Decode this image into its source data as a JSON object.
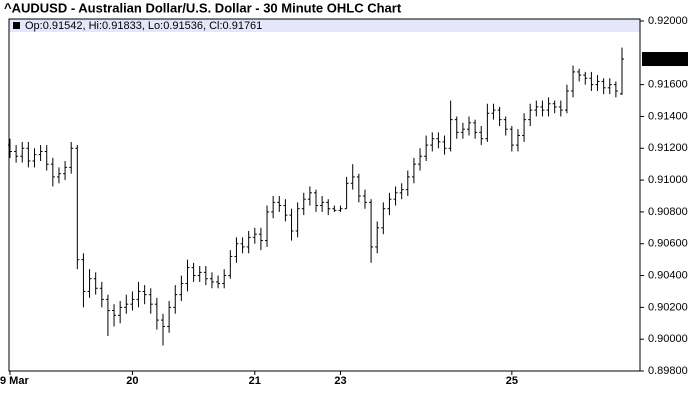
{
  "chart_data": {
    "type": "ohlc",
    "title": "^AUDUSD - Australian Dollar/U.S. Dollar - 30 Minute OHLC Chart",
    "info_label": "Op:0.91542, Hi:0.91833, Lo:0.91536, Cl:0.91761",
    "color": "#000000",
    "categories": [
      "9 Mar",
      null,
      null,
      null,
      null,
      null,
      null,
      null,
      null,
      null,
      null,
      null,
      null,
      null,
      null,
      null,
      null,
      null,
      null,
      null,
      "20",
      null,
      null,
      null,
      null,
      null,
      null,
      null,
      null,
      null,
      null,
      null,
      null,
      null,
      null,
      null,
      null,
      null,
      null,
      null,
      "21",
      null,
      null,
      null,
      null,
      null,
      null,
      null,
      null,
      null,
      null,
      null,
      null,
      null,
      "23",
      null,
      null,
      null,
      null,
      null,
      null,
      null,
      null,
      null,
      null,
      null,
      null,
      null,
      null,
      null,
      null,
      null,
      null,
      null,
      null,
      null,
      null,
      null,
      null,
      null,
      null,
      null,
      "25",
      null,
      null,
      null,
      null,
      null,
      null,
      null,
      null,
      null,
      null,
      null,
      null,
      null,
      null,
      null,
      null,
      null,
      null
    ],
    "open": [
      0.9122,
      0.9118,
      0.9115,
      0.912,
      0.9112,
      0.9116,
      0.9118,
      0.911,
      0.9102,
      0.9104,
      0.9108,
      0.912,
      0.905,
      0.903,
      0.9038,
      0.9032,
      0.9025,
      0.9018,
      0.9015,
      0.902,
      0.9022,
      0.9025,
      0.903,
      0.9028,
      0.9022,
      0.9012,
      0.9008,
      0.902,
      0.9028,
      0.9035,
      0.9045,
      0.904,
      0.9042,
      0.9038,
      0.9036,
      0.9035,
      0.904,
      0.9052,
      0.906,
      0.9058,
      0.9064,
      0.9066,
      0.9062,
      0.908,
      0.9086,
      0.9084,
      0.9078,
      0.9068,
      0.9082,
      0.9088,
      0.9092,
      0.9084,
      0.9086,
      0.9082,
      0.9081,
      0.9082,
      0.9098,
      0.9102,
      0.909,
      0.9086,
      0.9058,
      0.907,
      0.9082,
      0.9088,
      0.9092,
      0.9094,
      0.9102,
      0.911,
      0.9115,
      0.9122,
      0.9126,
      0.9124,
      0.912,
      0.9138,
      0.913,
      0.9132,
      0.9136,
      0.913,
      0.9126,
      0.9142,
      0.9144,
      0.9138,
      0.9132,
      0.9122,
      0.9128,
      0.9138,
      0.9144,
      0.9146,
      0.9144,
      0.9148,
      0.9146,
      0.9144,
      0.9156,
      0.9168,
      0.9166,
      0.9164,
      0.916,
      0.9162,
      0.9158,
      0.916,
      0.91542
    ],
    "high": [
      0.9126,
      0.9122,
      0.9124,
      0.9124,
      0.912,
      0.9122,
      0.9122,
      0.9114,
      0.9108,
      0.9112,
      0.9124,
      0.9122,
      0.9054,
      0.9044,
      0.9042,
      0.9036,
      0.9028,
      0.9022,
      0.9024,
      0.9028,
      0.903,
      0.9036,
      0.9034,
      0.9032,
      0.9026,
      0.9016,
      0.9024,
      0.9034,
      0.904,
      0.905,
      0.9048,
      0.9046,
      0.9046,
      0.9042,
      0.904,
      0.9044,
      0.9056,
      0.9064,
      0.9064,
      0.9068,
      0.907,
      0.907,
      0.9084,
      0.909,
      0.909,
      0.9088,
      0.9082,
      0.9086,
      0.9092,
      0.9096,
      0.9094,
      0.909,
      0.9088,
      0.9084,
      0.9084,
      0.9102,
      0.911,
      0.9104,
      0.9094,
      0.9088,
      0.9074,
      0.9086,
      0.9092,
      0.9096,
      0.9098,
      0.9106,
      0.9114,
      0.912,
      0.9128,
      0.913,
      0.913,
      0.9128,
      0.915,
      0.914,
      0.9136,
      0.914,
      0.9138,
      0.9134,
      0.9148,
      0.9148,
      0.9146,
      0.914,
      0.9134,
      0.9132,
      0.9142,
      0.9148,
      0.915,
      0.915,
      0.9152,
      0.915,
      0.915,
      0.916,
      0.9172,
      0.917,
      0.9168,
      0.9168,
      0.9166,
      0.9164,
      0.9164,
      0.9162,
      0.91833
    ],
    "low": [
      0.9114,
      0.9111,
      0.9111,
      0.9108,
      0.9108,
      0.9112,
      0.9106,
      0.9096,
      0.9098,
      0.91,
      0.9104,
      0.9044,
      0.902,
      0.9026,
      0.9028,
      0.902,
      0.9002,
      0.9008,
      0.901,
      0.9016,
      0.9018,
      0.902,
      0.9022,
      0.9016,
      0.9006,
      0.8996,
      0.9004,
      0.9016,
      0.9024,
      0.903,
      0.9036,
      0.9036,
      0.9034,
      0.9032,
      0.9032,
      0.9032,
      0.9038,
      0.9048,
      0.9054,
      0.9054,
      0.906,
      0.9056,
      0.9058,
      0.9076,
      0.908,
      0.9074,
      0.9062,
      0.9064,
      0.9078,
      0.9084,
      0.908,
      0.908,
      0.9078,
      0.908,
      0.908,
      0.9082,
      0.9094,
      0.9086,
      0.9082,
      0.9048,
      0.9054,
      0.9066,
      0.9078,
      0.9084,
      0.9088,
      0.909,
      0.9098,
      0.9106,
      0.9112,
      0.9118,
      0.912,
      0.9116,
      0.9118,
      0.9126,
      0.9126,
      0.9128,
      0.9126,
      0.9122,
      0.9124,
      0.9138,
      0.9134,
      0.9128,
      0.9118,
      0.9118,
      0.9124,
      0.9134,
      0.914,
      0.914,
      0.914,
      0.9142,
      0.914,
      0.9142,
      0.9152,
      0.9162,
      0.916,
      0.9156,
      0.9156,
      0.9154,
      0.9154,
      0.9152,
      0.91536
    ],
    "close": [
      0.9118,
      0.9115,
      0.912,
      0.9112,
      0.9116,
      0.9118,
      0.911,
      0.9102,
      0.9104,
      0.9108,
      0.912,
      0.905,
      0.903,
      0.9038,
      0.9032,
      0.9025,
      0.9018,
      0.9015,
      0.902,
      0.9022,
      0.9025,
      0.903,
      0.9028,
      0.9022,
      0.9012,
      0.9008,
      0.902,
      0.9028,
      0.9035,
      0.9045,
      0.904,
      0.9042,
      0.9038,
      0.9036,
      0.9035,
      0.904,
      0.9052,
      0.906,
      0.9058,
      0.9064,
      0.9066,
      0.9062,
      0.908,
      0.9086,
      0.9084,
      0.9078,
      0.9068,
      0.9082,
      0.9088,
      0.9092,
      0.9084,
      0.9086,
      0.9082,
      0.9081,
      0.9082,
      0.9098,
      0.9102,
      0.909,
      0.9086,
      0.9058,
      0.907,
      0.9082,
      0.9088,
      0.9092,
      0.9094,
      0.9102,
      0.911,
      0.9115,
      0.9122,
      0.9126,
      0.9124,
      0.912,
      0.9138,
      0.913,
      0.9132,
      0.9136,
      0.913,
      0.9126,
      0.9142,
      0.9144,
      0.9138,
      0.9132,
      0.9122,
      0.9128,
      0.9138,
      0.9144,
      0.9146,
      0.9144,
      0.9148,
      0.9146,
      0.9144,
      0.9156,
      0.9168,
      0.9166,
      0.9164,
      0.916,
      0.9162,
      0.9158,
      0.916,
      0.9156,
      0.91761
    ],
    "ylim": [
      0.898,
      0.92
    ],
    "yticks": [
      {
        "value": 0.898,
        "label": "0.89800"
      },
      {
        "value": 0.9,
        "label": "0.90000"
      },
      {
        "value": 0.902,
        "label": "0.90200"
      },
      {
        "value": 0.904,
        "label": "0.90400"
      },
      {
        "value": 0.906,
        "label": "0.90600"
      },
      {
        "value": 0.908,
        "label": "0.90800"
      },
      {
        "value": 0.91,
        "label": "0.91000"
      },
      {
        "value": 0.912,
        "label": "0.91200"
      },
      {
        "value": 0.914,
        "label": "0.91400"
      },
      {
        "value": 0.916,
        "label": "0.91600"
      },
      {
        "value": 0.92,
        "label": "0.92000"
      }
    ],
    "grid": false
  }
}
